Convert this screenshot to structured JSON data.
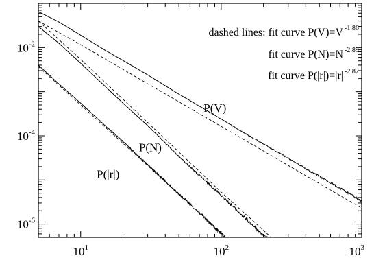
{
  "chart_data": {
    "type": "line",
    "xscale": "log",
    "yscale": "log",
    "xlim": [
      5,
      1000
    ],
    "ylim": [
      5e-07,
      0.1
    ],
    "x_ticks": [
      {
        "value": 10,
        "base": "10",
        "exp": "1"
      },
      {
        "value": 100,
        "base": "10",
        "exp": "2"
      },
      {
        "value": 1000,
        "base": "10",
        "exp": "3"
      }
    ],
    "y_ticks": [
      {
        "value": 0.01,
        "base": "10",
        "exp": "-2"
      },
      {
        "value": 0.0001,
        "base": "10",
        "exp": "-4"
      },
      {
        "value": 1e-06,
        "base": "10",
        "exp": "-6"
      }
    ],
    "grid": false,
    "legend_text": [
      {
        "text": "dashed lines:  fit curve P(V)=V",
        "exp": "-1.86"
      },
      {
        "text": "fit curve P(N)=N",
        "exp": "-2.89"
      },
      {
        "text": "fit curve P(|r|)=|r|",
        "exp": "-2.87"
      }
    ],
    "series": [
      {
        "name": "P(V)",
        "style": "solid",
        "x": [
          5,
          7,
          10,
          15,
          20,
          30,
          50,
          70,
          100,
          150,
          200,
          300,
          500,
          700,
          1000
        ],
        "y": [
          0.065,
          0.038,
          0.019,
          0.0086,
          0.0051,
          0.0024,
          0.00088,
          0.00047,
          0.00024,
          0.00011,
          6.5e-05,
          3.1e-05,
          1.2e-05,
          6.5e-06,
          3.3e-06
        ],
        "label_at": [
          75,
          0.00035
        ]
      },
      {
        "name": "fit P(V)",
        "style": "dashed",
        "exponent": -1.86,
        "x": [
          5,
          10,
          30,
          100,
          300,
          1000
        ],
        "y": [
          0.04,
          0.0116,
          0.00151,
          0.000164,
          2.13e-05,
          2.3e-06
        ]
      },
      {
        "name": "P(N)",
        "style": "solid",
        "x": [
          5,
          7,
          10,
          15,
          20,
          30,
          50,
          70,
          100,
          150,
          200,
          250
        ],
        "y": [
          0.03,
          0.0125,
          0.0044,
          0.0013,
          0.00055,
          0.00017,
          3.4e-05,
          1.26e-05,
          4.5e-06,
          1.3e-06,
          5.6e-07,
          3e-07
        ],
        "label_at": [
          26,
          4.5e-05
        ]
      },
      {
        "name": "fit P(N)",
        "style": "dashed",
        "exponent": -2.89,
        "x": [
          5,
          10,
          30,
          100,
          250
        ],
        "y": [
          0.04,
          0.0054,
          0.0002,
          5.3e-06,
          3.8e-07
        ]
      },
      {
        "name": "P(|r|)",
        "style": "solid",
        "x": [
          5,
          7,
          10,
          15,
          20,
          30,
          50,
          70,
          100,
          130
        ],
        "y": [
          0.004,
          0.0015,
          0.00055,
          0.000168,
          7.45e-05,
          2.2e-05,
          4.8e-06,
          1.8e-06,
          6e-07,
          2.8e-07
        ],
        "label_at": [
          13,
          1.1e-05
        ]
      },
      {
        "name": "fit P(|r|)",
        "style": "dashed",
        "exponent": -2.87,
        "x": [
          5,
          10,
          30,
          100,
          130
        ],
        "y": [
          0.0037,
          0.0005,
          2.1e-05,
          6.4e-07,
          3.1e-07
        ]
      }
    ]
  }
}
